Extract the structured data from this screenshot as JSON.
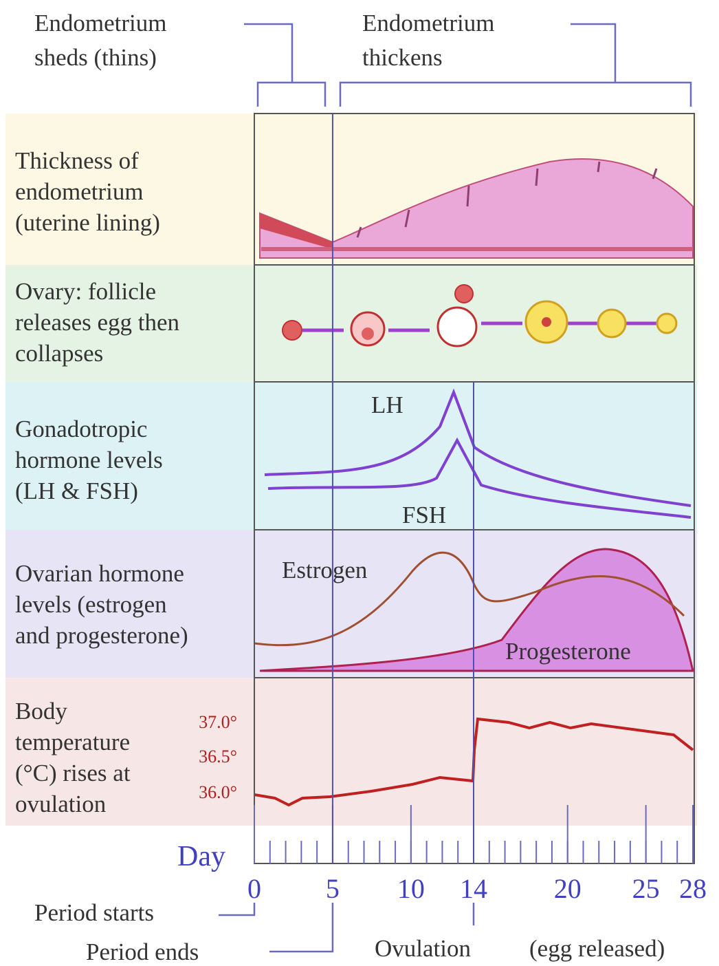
{
  "header": {
    "sheds": [
      "Endometrium",
      "sheds (thins)"
    ],
    "thickens": [
      "Endometrium",
      "thickens"
    ]
  },
  "rows": [
    {
      "label": [
        "Thickness of",
        "endometrium",
        "(uterine lining)"
      ]
    },
    {
      "label": [
        "Ovary: follicle",
        "releases egg then",
        "collapses"
      ]
    },
    {
      "label": [
        "Gonadotropic",
        "hormone levels",
        "(LH & FSH)"
      ],
      "curves": [
        "LH",
        "FSH"
      ]
    },
    {
      "label": [
        "Ovarian hormone",
        "levels (estrogen",
        "and progesterone)"
      ],
      "curves": [
        "Estrogen",
        "Progesterone"
      ]
    },
    {
      "label": [
        "Body",
        "temperature",
        "(°C) rises at",
        "ovulation"
      ],
      "scale": [
        "37.0°",
        "36.5°",
        "36.0°"
      ]
    }
  ],
  "day_axis": {
    "label": "Day",
    "lim": [
      0,
      28
    ],
    "ticks": [
      0,
      5,
      10,
      14,
      20,
      25,
      28
    ]
  },
  "footer": {
    "period_starts": "Period starts",
    "period_ends": "Period ends",
    "ovulation": "Ovulation",
    "ovulation_note": "(egg released)"
  }
}
